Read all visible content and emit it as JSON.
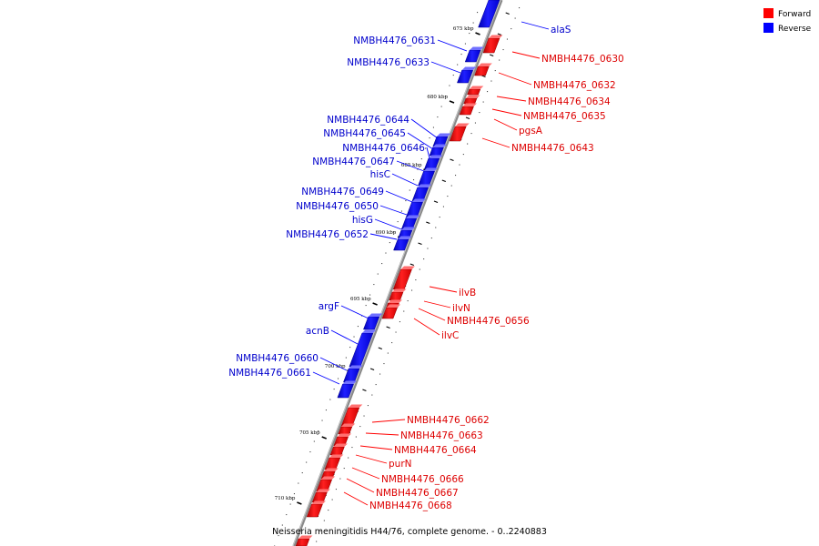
{
  "legend": {
    "forward_label": "Forward",
    "reverse_label": "Reverse",
    "forward_color": "#ff0000",
    "reverse_color": "#0000ff"
  },
  "caption": "Neisseria meningitidis H44/76, complete genome. - 0..2240883",
  "kbp_labels": [
    "675 kbp",
    "680 kbp",
    "685 kbp",
    "690 kbp",
    "695 kbp",
    "700 kbp",
    "705 kbp",
    "710 kbp"
  ],
  "forward_genes": [
    "NMBH4476_0630",
    "NMBH4476_0632",
    "NMBH4476_0634",
    "NMBH4476_0635",
    "pgsA",
    "NMBH4476_0643",
    "ilvB",
    "ilvN",
    "NMBH4476_0656",
    "ilvC",
    "NMBH4476_0662",
    "NMBH4476_0663",
    "NMBH4476_0664",
    "purN",
    "NMBH4476_0666",
    "NMBH4476_0667",
    "NMBH4476_0668"
  ],
  "reverse_genes": [
    "alaS",
    "NMBH4476_0631",
    "NMBH4476_0633",
    "NMBH4476_0644",
    "NMBH4476_0645",
    "NMBH4476_0646",
    "NMBH4476_0647",
    "hisC",
    "NMBH4476_0649",
    "NMBH4476_0650",
    "hisG",
    "NMBH4476_0652",
    "argF",
    "acnB",
    "NMBH4476_0660",
    "NMBH4476_0661"
  ]
}
